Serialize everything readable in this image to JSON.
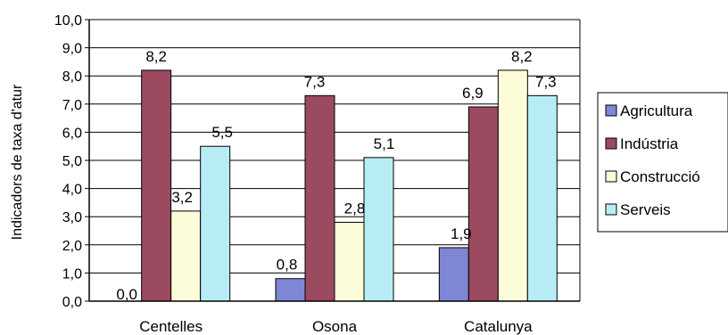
{
  "chart_data": {
    "type": "bar",
    "ylabel": "Indicadors de taxa d'atur",
    "ylim": [
      0,
      10
    ],
    "ytick_step": 1,
    "grid": "horizontal",
    "legend_position": "right",
    "categories": [
      "Centelles",
      "Osona",
      "Catalunya"
    ],
    "series": [
      {
        "name": "Agricultura",
        "values": [
          0.0,
          0.8,
          1.9
        ],
        "labels": [
          "0,0",
          "0,8",
          "1,9"
        ],
        "color": "#7f86d6"
      },
      {
        "name": "Indústria",
        "values": [
          8.2,
          7.3,
          6.9
        ],
        "labels": [
          "8,2",
          "7,3",
          "6,9"
        ],
        "color": "#9b4a60"
      },
      {
        "name": "Construcció",
        "values": [
          3.2,
          2.8,
          8.2
        ],
        "labels": [
          "3,2",
          "2,8",
          "8,2"
        ],
        "color": "#fdfcd8"
      },
      {
        "name": "Serveis",
        "values": [
          5.5,
          5.1,
          7.3
        ],
        "labels": [
          "5,5",
          "5,1",
          "7,3"
        ],
        "color": "#b7ecf5"
      }
    ],
    "ytick_labels": [
      "0,0",
      "1,0",
      "2,0",
      "3,0",
      "4,0",
      "5,0",
      "6,0",
      "7,0",
      "8,0",
      "9,0",
      "10,0"
    ]
  }
}
